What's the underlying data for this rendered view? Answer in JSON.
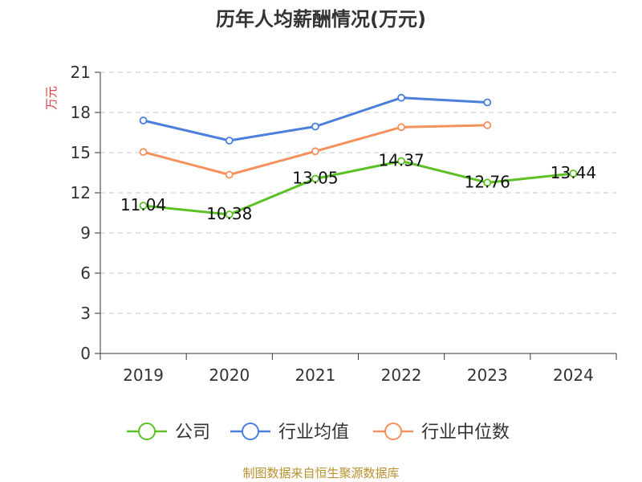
{
  "chart_data": {
    "type": "line",
    "title": "历年人均薪酬情况(万元)",
    "ylabel": "万元",
    "xlabel": "",
    "categories": [
      "2019",
      "2020",
      "2021",
      "2022",
      "2023",
      "2024"
    ],
    "ylim": [
      0,
      21
    ],
    "yticks": [
      0,
      3,
      6,
      9,
      12,
      15,
      18,
      21
    ],
    "grid": "horizontal-dashed",
    "legend_position": "bottom",
    "series": [
      {
        "name": "公司",
        "color": "#5cc125",
        "values": [
          11.04,
          10.38,
          13.05,
          14.37,
          12.76,
          13.44
        ],
        "labels": [
          "11.04",
          "10.38",
          "13.05",
          "14.37",
          "12.76",
          "13.44"
        ]
      },
      {
        "name": "行业均值",
        "color": "#4a7fdb",
        "values": [
          17.4,
          15.9,
          16.95,
          19.1,
          18.75,
          null
        ]
      },
      {
        "name": "行业中位数",
        "color": "#f5915c",
        "values": [
          15.05,
          13.35,
          15.1,
          16.9,
          17.05,
          null
        ]
      }
    ],
    "source": "制图数据来自恒生聚源数据库"
  }
}
